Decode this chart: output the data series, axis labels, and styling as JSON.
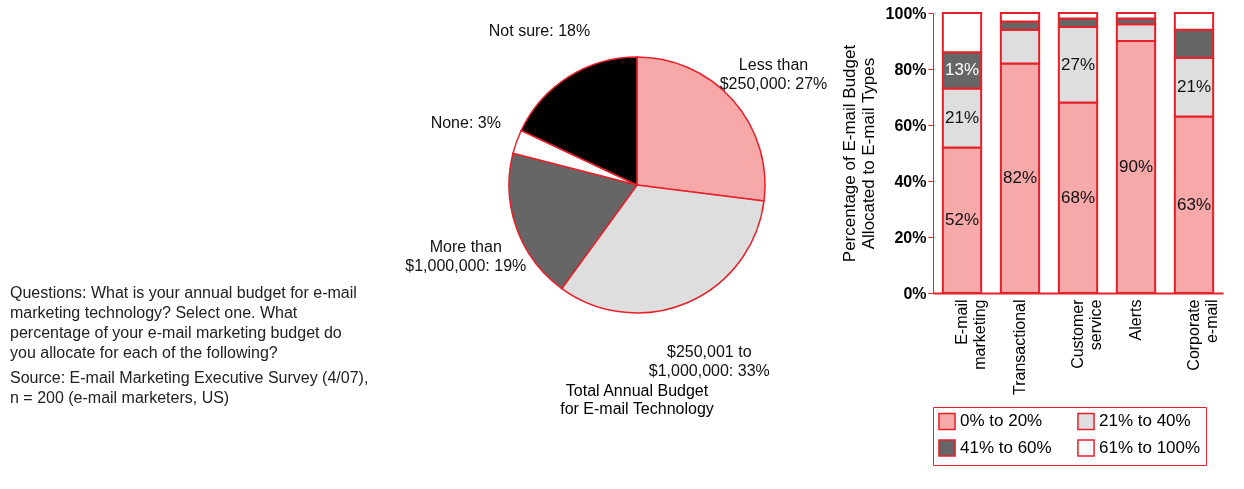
{
  "chart_data": [
    {
      "type": "pie",
      "title": "Total Annual Budget for E-mail Technology",
      "categories": [
        "Less than $250,000",
        "$250,001 to $1,000,000",
        "More than $1,000,000",
        "None",
        "Not sure"
      ],
      "values": [
        27,
        33,
        19,
        3,
        18
      ],
      "colors": [
        "#f7a8a8",
        "#dedede",
        "#666666",
        "#ffffff",
        "#000000"
      ],
      "value_labels": [
        "27%",
        "33%",
        "19%",
        "3%",
        "18%"
      ],
      "annotations": [
        "Questions: What is your annual budget for e-mail marketing technology? Select one. What percentage of your e-mail marketing budget do you allocate for each of the following?",
        "Source: E-mail Marketing Executive Survey (4/07), n = 200 (e-mail marketers, US)"
      ]
    },
    {
      "type": "bar",
      "stacked": true,
      "ylabel": "Percentage of E-mail Budget Allocated to E-mail Types",
      "categories": [
        "E-mail marketing",
        "Transactional",
        "Customer service",
        "Alerts",
        "Corporate e-mail"
      ],
      "series": [
        {
          "name": "0% to 20%",
          "color": "#f7a8a8",
          "values": [
            52,
            82,
            68,
            90,
            63
          ],
          "value_labels": [
            "52%",
            "82%",
            "68%",
            "90%",
            "63%"
          ]
        },
        {
          "name": "21% to 40%",
          "color": "#dedede",
          "values": [
            21,
            12,
            27,
            6,
            21
          ],
          "value_labels": [
            "21%",
            null,
            "27%",
            null,
            "21%"
          ]
        },
        {
          "name": "41% to 60%",
          "color": "#666666",
          "values": [
            13,
            3,
            3,
            2,
            10
          ],
          "value_labels": [
            "13%",
            null,
            null,
            null,
            null
          ]
        },
        {
          "name": "61% to 100%",
          "color": "#ffffff",
          "values": [
            14,
            3,
            2,
            2,
            6
          ]
        }
      ],
      "ylim": [
        0,
        100
      ],
      "yticks": [
        {
          "value": 0,
          "label": "0%"
        },
        {
          "value": 20,
          "label": "20%"
        },
        {
          "value": 40,
          "label": "40%"
        },
        {
          "value": 60,
          "label": "60%"
        },
        {
          "value": 80,
          "label": "80%"
        },
        {
          "value": 100,
          "label": "100%"
        }
      ],
      "grid": false,
      "legend": "bottom"
    }
  ]
}
